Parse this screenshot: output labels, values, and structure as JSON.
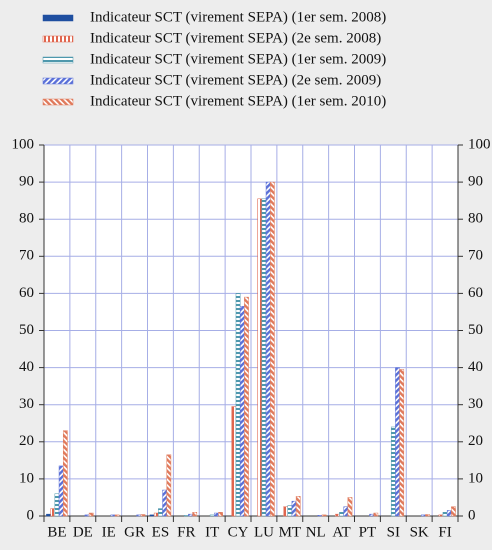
{
  "chart_data": {
    "type": "bar",
    "categories": [
      "BE",
      "DE",
      "IE",
      "GR",
      "ES",
      "FR",
      "IT",
      "CY",
      "LU",
      "MT",
      "NL",
      "AT",
      "PT",
      "SI",
      "SK",
      "FI"
    ],
    "series": [
      {
        "name": "Indicateur SCT (virement SEPA) (1er sem. 2008)",
        "color": "#1f4fa0",
        "pattern": "solid",
        "values": [
          0.5,
          0,
          0,
          0,
          0.3,
          0,
          0,
          0,
          0,
          0,
          0,
          0,
          0,
          0,
          0,
          0
        ]
      },
      {
        "name": "Indicateur SCT (virement SEPA) (2e sem. 2008)",
        "color": "#e0664f",
        "pattern": "vertical",
        "values": [
          2,
          0,
          0,
          0,
          0.8,
          0,
          0,
          29.5,
          85.5,
          2.5,
          0,
          0.5,
          0,
          0,
          0,
          0.3
        ]
      },
      {
        "name": "Indicateur SCT (virement SEPA) (1er sem. 2009)",
        "color": "#4f98ad",
        "pattern": "horizontal",
        "values": [
          6,
          0,
          0,
          0,
          2,
          0.2,
          0.3,
          60,
          85.5,
          2.8,
          0,
          1,
          0,
          24,
          0,
          1
        ]
      },
      {
        "name": "Indicateur SCT (virement SEPA) (2e sem. 2009)",
        "color": "#5a70d8",
        "pattern": "diagonal",
        "values": [
          13.5,
          0.3,
          0.3,
          0.3,
          7,
          0.5,
          0.8,
          56.5,
          90,
          4,
          0.2,
          2.5,
          0.5,
          40,
          0.3,
          1.5
        ]
      },
      {
        "name": "Indicateur SCT (virement SEPA) (1er sem. 2010)",
        "color": "#e07a5c",
        "pattern": "diagonal",
        "values": [
          23,
          0.8,
          0.3,
          0.4,
          16.5,
          1,
          1,
          59,
          90,
          5.3,
          0.3,
          5,
          0.8,
          39.5,
          0.4,
          2.5
        ]
      }
    ],
    "ylim": [
      0,
      100
    ],
    "yticks": [
      0,
      10,
      20,
      30,
      40,
      50,
      60,
      70,
      80,
      90,
      100
    ],
    "y2lim": [
      0,
      100
    ],
    "y2ticks": [
      0,
      10,
      20,
      30,
      40,
      50,
      60,
      70,
      80,
      90,
      100
    ],
    "grid": true
  }
}
